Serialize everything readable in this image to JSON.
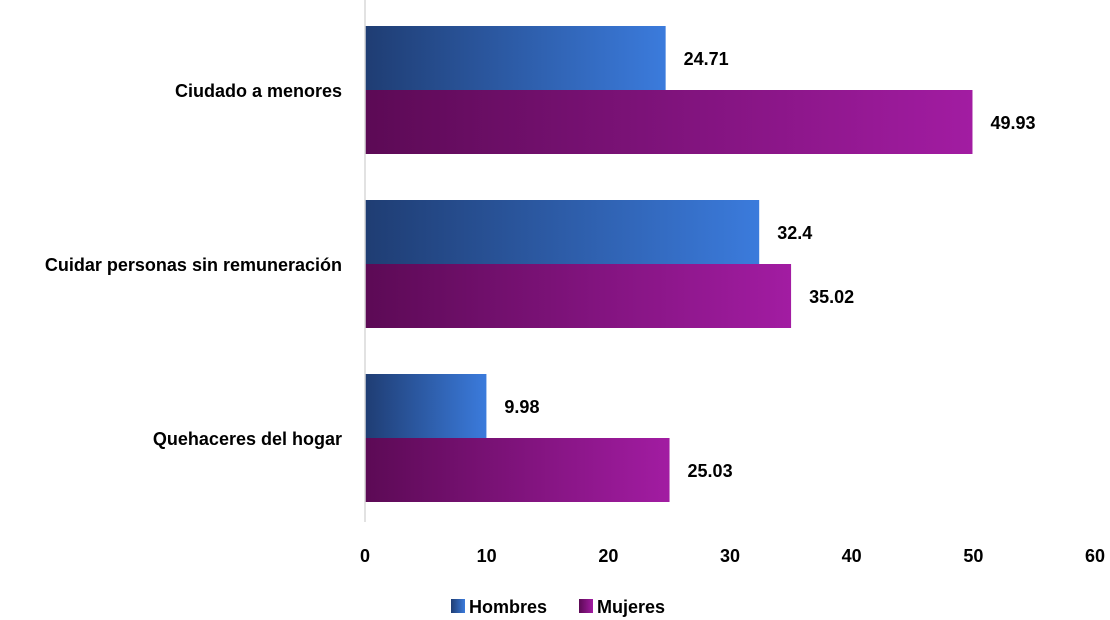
{
  "chart_data": {
    "type": "bar",
    "orientation": "horizontal",
    "title": "",
    "xlabel": "",
    "ylabel": "",
    "categories": [
      "Ciudado a menores",
      "Cuidar personas sin remuneración",
      "Quehaceres del hogar"
    ],
    "series": [
      {
        "name": "Hombres",
        "values": [
          24.71,
          32.4,
          9.98
        ],
        "color_start": "#1f3d73",
        "color_end": "#3b7bdc"
      },
      {
        "name": "Mujeres",
        "values": [
          49.93,
          35.02,
          25.03
        ],
        "color_start": "#5c0a55",
        "color_end": "#a21ca2"
      }
    ],
    "data_labels": [
      [
        "24.71",
        "32.4",
        "9.98"
      ],
      [
        "49.93",
        "35.02",
        "25.03"
      ]
    ],
    "xlim": [
      0,
      60
    ],
    "xticks": [
      0,
      10,
      20,
      30,
      40,
      50,
      60
    ],
    "grid": false,
    "legend_position": "bottom",
    "axis_color": "#d9d9d9"
  }
}
